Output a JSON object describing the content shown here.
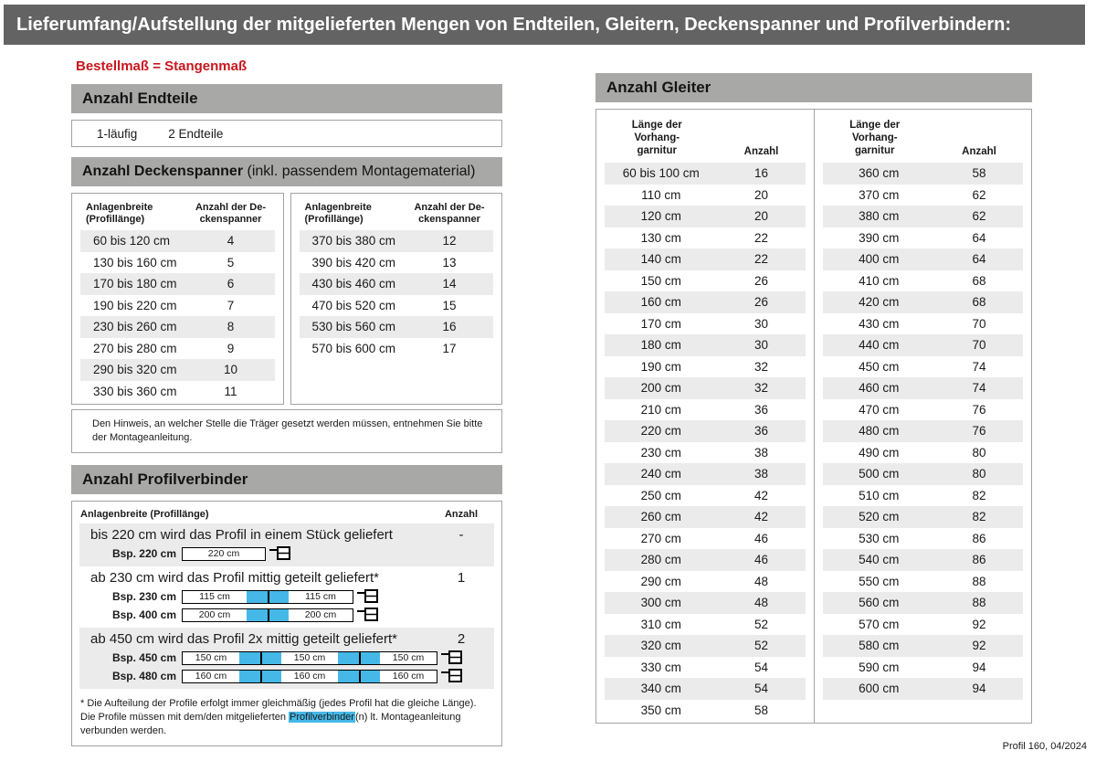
{
  "page": {
    "title": "Lieferumfang/Aufstellung der mitgelieferten Mengen von Endteilen, Gleitern, Deckenspanner und Profilverbindern:",
    "subtitle": "Bestellmaß = Stangenmaß",
    "footer": "Profil 160, 04/2024"
  },
  "colors": {
    "title_bar": "#636363",
    "section_bar": "#a8a8a7",
    "row_shade": "#ebebeb",
    "accent_red": "#c8161d",
    "accent_cyan": "#45b8e8"
  },
  "endteile": {
    "heading": "Anzahl Endteile",
    "row_label": "1-läufig",
    "row_value": "2 Endteile"
  },
  "deckenspanner": {
    "heading_bold": "Anzahl Deckenspanner",
    "heading_rest": " (inkl. passendem Montagematerial)",
    "col1_header": "Anlagenbreite\n(Profillänge)",
    "col2_header": "Anzahl der De-\nckenspanner",
    "left_rows": [
      [
        "60 bis 120 cm",
        "4"
      ],
      [
        "130 bis 160 cm",
        "5"
      ],
      [
        "170 bis 180 cm",
        "6"
      ],
      [
        "190 bis 220 cm",
        "7"
      ],
      [
        "230 bis 260 cm",
        "8"
      ],
      [
        "270 bis 280 cm",
        "9"
      ],
      [
        "290 bis 320 cm",
        "10"
      ],
      [
        "330 bis 360 cm",
        "11"
      ]
    ],
    "right_rows": [
      [
        "370 bis 380 cm",
        "12"
      ],
      [
        "390 bis 420 cm",
        "13"
      ],
      [
        "430 bis 460 cm",
        "14"
      ],
      [
        "470 bis 520 cm",
        "15"
      ],
      [
        "530 bis 560 cm",
        "16"
      ],
      [
        "570 bis 600 cm",
        "17"
      ]
    ],
    "note": "Den Hinweis, an welcher Stelle die Träger gesetzt werden müssen, entnehmen Sie bitte der Montageanleitung."
  },
  "profilverbinder": {
    "heading": "Anzahl Profilverbinder",
    "col1_header": "Anlagenbreite (Profillänge)",
    "col2_header": "Anzahl",
    "rows": [
      {
        "text": "bis 220 cm wird das Profil in einem Stück geliefert",
        "anzahl": "-",
        "examples": [
          {
            "label": "Bsp. 220 cm",
            "segments": [
              "220 cm"
            ]
          }
        ]
      },
      {
        "text": "ab 230 cm wird das Profil mittig geteilt geliefert*",
        "anzahl": "1",
        "examples": [
          {
            "label": "Bsp. 230 cm",
            "segments": [
              "115 cm",
              "115 cm"
            ]
          },
          {
            "label": "Bsp. 400 cm",
            "segments": [
              "200 cm",
              "200 cm"
            ]
          }
        ]
      },
      {
        "text": "ab 450 cm wird das Profil 2x mittig geteilt geliefert*",
        "anzahl": "2",
        "examples": [
          {
            "label": "Bsp. 450 cm",
            "segments": [
              "150 cm",
              "150 cm",
              "150 cm"
            ]
          },
          {
            "label": "Bsp. 480 cm",
            "segments": [
              "160 cm",
              "160 cm",
              "160 cm"
            ]
          }
        ]
      }
    ],
    "footnote_pre": "* Die Aufteilung der Profile erfolgt immer gleichmäßig (jedes Profil hat die gleiche Länge). Die Profile müssen mit dem/den mitgelieferten ",
    "footnote_highlight": "Profilverbinder",
    "footnote_post": "(n) lt. Montageanleitung verbunden werden."
  },
  "gleiter": {
    "heading": "Anzahl Gleiter",
    "col1_header": "Länge der\nVorhang-\ngarnitur",
    "col2_header": "Anzahl",
    "left_rows": [
      [
        "60 bis 100 cm",
        "16"
      ],
      [
        "110 cm",
        "20"
      ],
      [
        "120 cm",
        "20"
      ],
      [
        "130 cm",
        "22"
      ],
      [
        "140 cm",
        "22"
      ],
      [
        "150 cm",
        "26"
      ],
      [
        "160 cm",
        "26"
      ],
      [
        "170 cm",
        "30"
      ],
      [
        "180 cm",
        "30"
      ],
      [
        "190 cm",
        "32"
      ],
      [
        "200 cm",
        "32"
      ],
      [
        "210 cm",
        "36"
      ],
      [
        "220 cm",
        "36"
      ],
      [
        "230 cm",
        "38"
      ],
      [
        "240 cm",
        "38"
      ],
      [
        "250 cm",
        "42"
      ],
      [
        "260 cm",
        "42"
      ],
      [
        "270 cm",
        "46"
      ],
      [
        "280 cm",
        "46"
      ],
      [
        "290 cm",
        "48"
      ],
      [
        "300 cm",
        "48"
      ],
      [
        "310 cm",
        "52"
      ],
      [
        "320 cm",
        "52"
      ],
      [
        "330 cm",
        "54"
      ],
      [
        "340 cm",
        "54"
      ],
      [
        "350 cm",
        "58"
      ]
    ],
    "right_rows": [
      [
        "360 cm",
        "58"
      ],
      [
        "370 cm",
        "62"
      ],
      [
        "380 cm",
        "62"
      ],
      [
        "390 cm",
        "64"
      ],
      [
        "400 cm",
        "64"
      ],
      [
        "410 cm",
        "68"
      ],
      [
        "420 cm",
        "68"
      ],
      [
        "430 cm",
        "70"
      ],
      [
        "440 cm",
        "70"
      ],
      [
        "450 cm",
        "74"
      ],
      [
        "460 cm",
        "74"
      ],
      [
        "470 cm",
        "76"
      ],
      [
        "480 cm",
        "76"
      ],
      [
        "490 cm",
        "80"
      ],
      [
        "500 cm",
        "80"
      ],
      [
        "510 cm",
        "82"
      ],
      [
        "520 cm",
        "82"
      ],
      [
        "530 cm",
        "86"
      ],
      [
        "540 cm",
        "86"
      ],
      [
        "550 cm",
        "88"
      ],
      [
        "560 cm",
        "88"
      ],
      [
        "570 cm",
        "92"
      ],
      [
        "580 cm",
        "92"
      ],
      [
        "590 cm",
        "94"
      ],
      [
        "600 cm",
        "94"
      ]
    ]
  }
}
